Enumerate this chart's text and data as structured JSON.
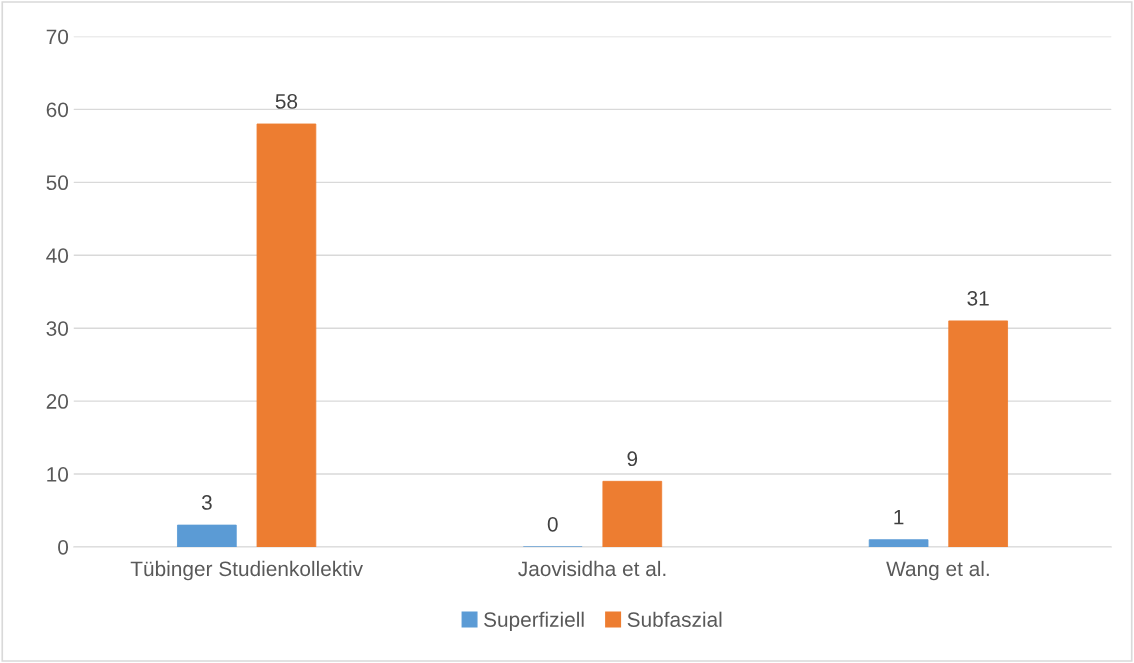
{
  "chart_data": {
    "type": "bar",
    "categories": [
      "Tübinger Studienkollektiv",
      "Jaovisidha et al.",
      "Wang et al."
    ],
    "series": [
      {
        "name": "Superfiziell",
        "color": "#5b9bd5",
        "values": [
          3,
          0,
          1
        ]
      },
      {
        "name": "Subfaszial",
        "color": "#ed7d31",
        "values": [
          58,
          9,
          31
        ]
      }
    ],
    "ylim": [
      0,
      70
    ],
    "yticks": [
      0,
      10,
      20,
      30,
      40,
      50,
      60,
      70
    ],
    "grid": "y",
    "legend": "bottom",
    "data_labels": true
  }
}
